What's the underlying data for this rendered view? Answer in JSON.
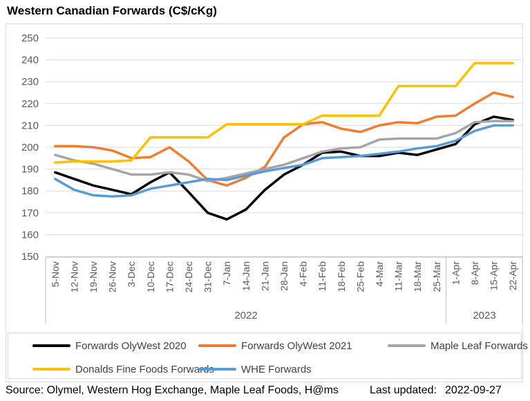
{
  "header": {
    "title": "Western Canadian Forwards (C$/cKg)"
  },
  "chart_data": {
    "type": "line",
    "title": "Western Canadian Forwards (C$/cKg)",
    "ylabel": "",
    "xlabel": "",
    "ylim": [
      150,
      250
    ],
    "y_ticks": [
      150,
      160,
      170,
      180,
      190,
      200,
      210,
      220,
      230,
      240,
      250
    ],
    "grid": true,
    "legend_position": "bottom",
    "categories": [
      "5-Nov",
      "12-Nov",
      "19-Nov",
      "26-Nov",
      "3-Dec",
      "10-Dec",
      "17-Dec",
      "24-Dec",
      "31-Dec",
      "7-Jan",
      "14-Jan",
      "21-Jan",
      "28-Jan",
      "4-Feb",
      "11-Feb",
      "18-Feb",
      "25-Feb",
      "4-Mar",
      "11-Mar",
      "18-Mar",
      "25-Mar",
      "1-Apr",
      "8-Apr",
      "15-Apr",
      "22-Apr"
    ],
    "year_groups": [
      {
        "label": "2022",
        "start": 0,
        "end": 20
      },
      {
        "label": "2023",
        "start": 21,
        "end": 24
      }
    ],
    "series": [
      {
        "name": "Forwards OlyWest 2020",
        "color": "#000000",
        "values": [
          188.5,
          185.5,
          182.5,
          180.5,
          178.5,
          184,
          188.5,
          179.5,
          170,
          167,
          171.5,
          180.5,
          187.5,
          192,
          197.5,
          198,
          196,
          196,
          197.5,
          196.5,
          199,
          201.5,
          210.5,
          214,
          212.5
        ]
      },
      {
        "name": "Forwards OlyWest 2021",
        "color": "#ED7D31",
        "values": [
          200.5,
          200.5,
          200,
          198.5,
          195,
          195.5,
          200,
          193.5,
          185,
          182.5,
          186,
          191,
          204.5,
          210.5,
          211.5,
          208.5,
          207,
          210,
          211.5,
          211,
          214,
          214.5,
          220,
          225,
          223
        ]
      },
      {
        "name": "Maple Leaf Forwards",
        "color": "#A5A5A5",
        "values": [
          196.5,
          194,
          192.5,
          190,
          187.5,
          187.5,
          188.5,
          187.5,
          184.5,
          186,
          188,
          190,
          192,
          195,
          198,
          199.5,
          200,
          203.5,
          204,
          204,
          204,
          206.5,
          211.5,
          212,
          212
        ]
      },
      {
        "name": "Donalds Fine Foods Forwards",
        "color": "#FFC000",
        "values": [
          193,
          193.5,
          193.5,
          193.5,
          194,
          204.5,
          204.5,
          204.5,
          204.5,
          210.5,
          210.5,
          210.5,
          210.5,
          210.5,
          214.5,
          214.5,
          214.5,
          214.5,
          228,
          228,
          228,
          228,
          238.5,
          238.5,
          238.5
        ]
      },
      {
        "name": "WHE Forwards",
        "color": "#5B9BD5",
        "values": [
          185.5,
          180.5,
          178,
          177.5,
          178,
          181,
          182.5,
          184,
          185.5,
          185,
          187,
          189,
          190.5,
          192,
          195,
          195.5,
          196,
          197,
          198,
          199.5,
          200.5,
          203,
          207.5,
          210,
          210
        ]
      }
    ],
    "axis_text_color": "#595959",
    "gridline_color": "#D9D9D9",
    "axis_line_color": "#BFBFBF"
  },
  "footer": {
    "source": "Source: Olymel, Western Hog Exchange, Maple Leaf Foods, H@ms",
    "last_updated_label": "Last updated:",
    "last_updated_value": "2022-09-27"
  }
}
